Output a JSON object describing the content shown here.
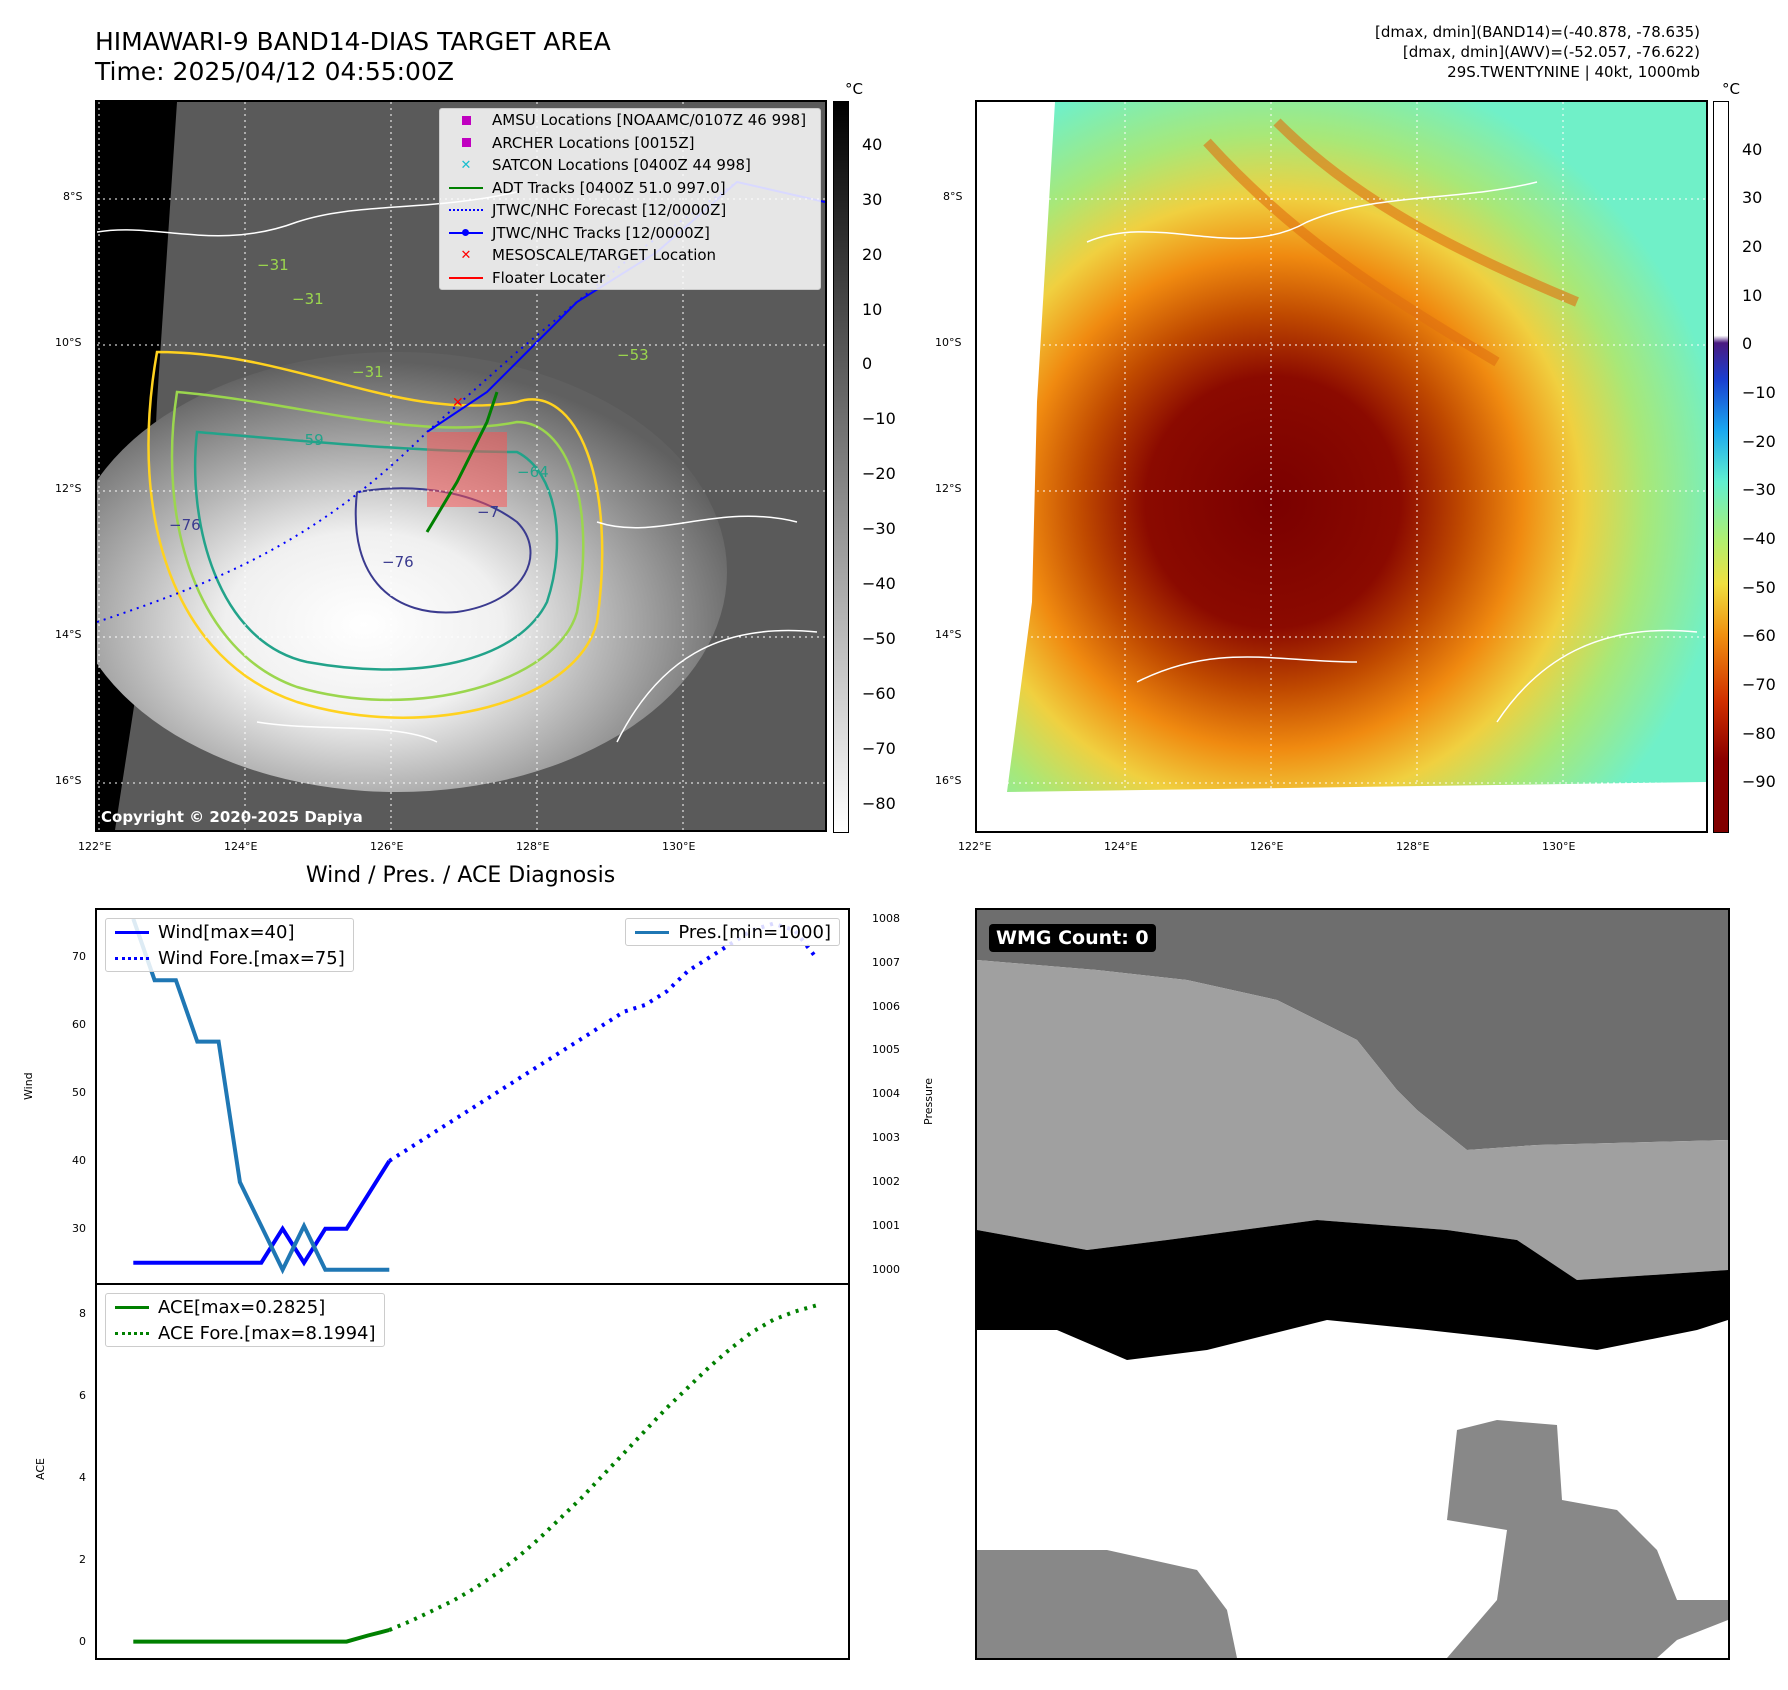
{
  "header": {
    "title_line1": "HIMAWARI-9 BAND14-DIAS TARGET AREA",
    "title_line2": "Time: 2025/04/12 04:55:00Z",
    "info_line1": "[dmax, dmin](BAND14)=(-40.878, -78.635)",
    "info_line2": "[dmax, dmin](AWV)=(-52.057, -76.622)",
    "info_line3": "29S.TWENTYNINE | 40kt, 1000mb"
  },
  "map": {
    "lat_labels": [
      "8°S",
      "10°S",
      "12°S",
      "14°S",
      "16°S"
    ],
    "lon_labels": [
      "122°E",
      "124°E",
      "126°E",
      "128°E",
      "130°E"
    ],
    "copyright": "Copyright © 2020-2025 Dapiya",
    "contour_labels": [
      "−31",
      "−31",
      "−31",
      "−53",
      "−59",
      "−64",
      "−76",
      "−76",
      "−7"
    ],
    "legend": [
      {
        "label": "AMSU Locations [NOAAMC/0107Z 46 998]",
        "symbol": "square",
        "color": "#c000c0"
      },
      {
        "label": "ARCHER Locations [0015Z]",
        "symbol": "square",
        "color": "#c000c0"
      },
      {
        "label": "SATCON Locations [0400Z 44 998]",
        "symbol": "x",
        "color": "#17becf"
      },
      {
        "label": "ADT Tracks [0400Z 51.0 997.0]",
        "symbol": "line",
        "color": "#008000"
      },
      {
        "label": "JTWC/NHC Forecast [12/0000Z]",
        "symbol": "dotted",
        "color": "#0000ff"
      },
      {
        "label": "JTWC/NHC Tracks [12/0000Z]",
        "symbol": "line-dot",
        "color": "#0000ff"
      },
      {
        "label": "MESOSCALE/TARGET Location",
        "symbol": "x",
        "color": "#ff0000"
      },
      {
        "label": "Floater Locater",
        "symbol": "line",
        "color": "#ff0000"
      }
    ],
    "colorbar_unit": "°C",
    "colorbar_ticks_gray": [
      "40",
      "30",
      "20",
      "10",
      "0",
      "−10",
      "−20",
      "−30",
      "−40",
      "−50",
      "−60",
      "−70",
      "−80"
    ],
    "colorbar_ticks_color": [
      "40",
      "30",
      "20",
      "10",
      "0",
      "−10",
      "−20",
      "−30",
      "−40",
      "−50",
      "−60",
      "−70",
      "−80",
      "−90"
    ]
  },
  "wmg": {
    "label": "WMG Count: 0"
  },
  "chart_data": [
    {
      "type": "line",
      "title": "Wind / Pres. / ACE Diagnosis",
      "ylabel": "Wind",
      "ylabel_right": "Pressure",
      "yticks": [
        "30",
        "40",
        "50",
        "60",
        "70"
      ],
      "yticks_right": [
        "1000",
        "1001",
        "1002",
        "1003",
        "1004",
        "1005",
        "1006",
        "1007",
        "1008"
      ],
      "ylim": [
        22,
        77
      ],
      "ylim_right": [
        999.7,
        1008.2
      ],
      "series": [
        {
          "name": "Wind[max=40]",
          "color": "#0000ff",
          "style": "solid",
          "x": [
            0,
            1,
            2,
            3,
            4,
            5,
            6,
            7,
            8,
            9,
            10,
            11,
            12
          ],
          "values": [
            25,
            25,
            25,
            25,
            25,
            25,
            25,
            30,
            25,
            30,
            30,
            35,
            40
          ]
        },
        {
          "name": "Wind Fore.[max=75]",
          "color": "#0000ff",
          "style": "dotted",
          "x": [
            12,
            13,
            14,
            15,
            16,
            17,
            18,
            19,
            20,
            21,
            22,
            23,
            24,
            25,
            26,
            27,
            28,
            29,
            30,
            31,
            32
          ],
          "values": [
            40,
            42,
            44,
            46,
            48,
            50,
            52,
            54,
            56,
            58,
            60,
            62,
            63,
            65,
            68,
            70,
            72,
            74,
            75,
            74,
            70
          ]
        }
      ],
      "pressure": {
        "name": "Pres.[min=1000]",
        "color": "#1f77b4",
        "x": [
          0,
          1,
          2,
          3,
          4,
          5,
          6,
          7,
          8,
          9,
          10,
          11,
          12
        ],
        "values": [
          1008,
          1006.6,
          1006.6,
          1005.2,
          1005.2,
          1002,
          1001,
          1000,
          1001,
          1000,
          1000,
          1000,
          1000
        ]
      }
    },
    {
      "type": "line",
      "ylabel": "ACE",
      "yticks": [
        "0",
        "2",
        "4",
        "6",
        "8"
      ],
      "ylim": [
        -0.4,
        8.7
      ],
      "series": [
        {
          "name": "ACE[max=0.2825]",
          "color": "#008000",
          "style": "solid",
          "x": [
            0,
            1,
            2,
            3,
            4,
            5,
            6,
            7,
            8,
            9,
            10,
            11,
            12
          ],
          "values": [
            0,
            0,
            0,
            0,
            0,
            0,
            0,
            0,
            0,
            0,
            0,
            0.15,
            0.2825
          ]
        },
        {
          "name": "ACE Fore.[max=8.1994]",
          "color": "#008000",
          "style": "dotted",
          "x": [
            12,
            13,
            14,
            15,
            16,
            17,
            18,
            19,
            20,
            21,
            22,
            23,
            24,
            25,
            26,
            27,
            28,
            29,
            30,
            31,
            32
          ],
          "values": [
            0.2825,
            0.5,
            0.75,
            1.0,
            1.3,
            1.65,
            2.05,
            2.5,
            3.0,
            3.5,
            4.05,
            4.6,
            5.15,
            5.7,
            6.2,
            6.7,
            7.15,
            7.55,
            7.85,
            8.05,
            8.1994
          ]
        }
      ]
    }
  ]
}
